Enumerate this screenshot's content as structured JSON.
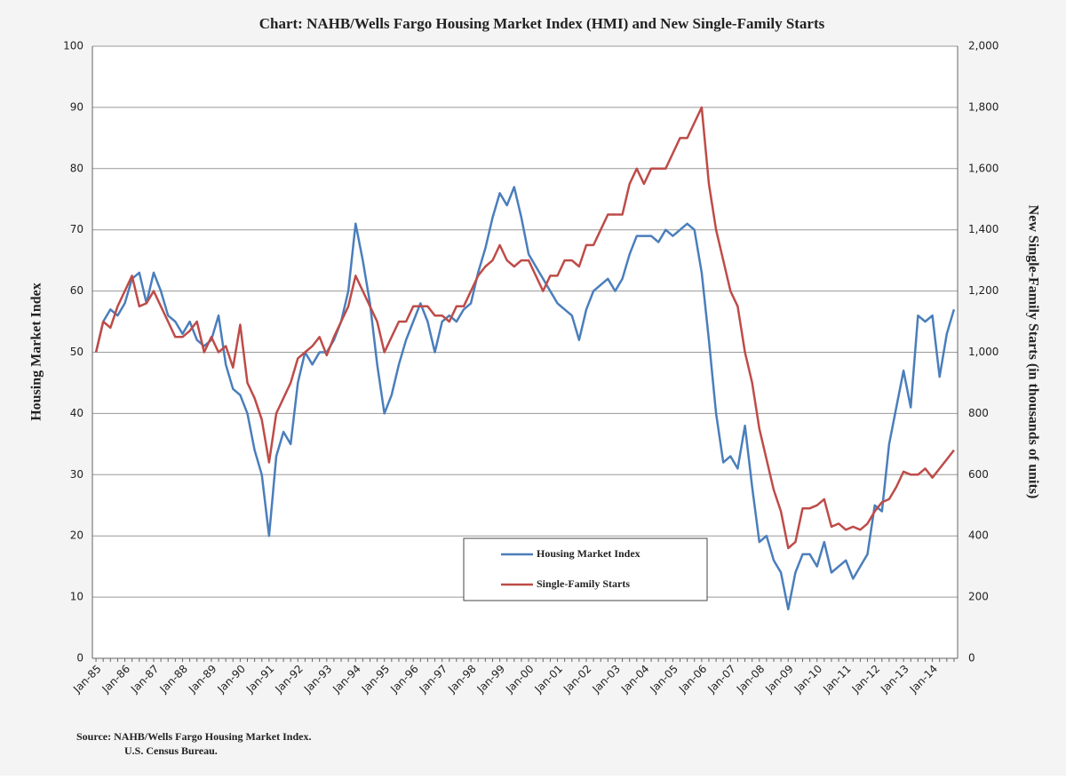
{
  "chart_data": {
    "type": "line",
    "title": "Chart:  NAHB/Wells Fargo Housing Market Index (HMI) and New Single-Family Starts",
    "ylabel": "Housing Market Index",
    "y2label": "New Single-Family Starts (in thousands of units)",
    "source": [
      "Source: NAHB/Wells Fargo Housing Market Index.",
      "U.S. Census Bureau."
    ],
    "grid": true,
    "legend": "bottom",
    "ylim": [
      0,
      100
    ],
    "yticks": [
      0,
      10,
      20,
      30,
      40,
      50,
      60,
      70,
      80,
      90,
      100
    ],
    "y2lim": [
      0,
      2000
    ],
    "y2ticks": [
      0,
      200,
      400,
      600,
      800,
      {
        "value": 1000,
        "label": "1,000"
      },
      {
        "value": 1200,
        "label": "1,200"
      },
      {
        "value": 1400,
        "label": "1,400"
      },
      {
        "value": 1600,
        "label": "1,600"
      },
      {
        "value": 1800,
        "label": "1,800"
      },
      {
        "value": 2000,
        "label": "2,000"
      }
    ],
    "categories": [
      "Jan-85",
      null,
      null,
      null,
      "Jan-86",
      null,
      null,
      null,
      "Jan-87",
      null,
      null,
      null,
      "Jan-88",
      null,
      null,
      null,
      "Jan-89",
      null,
      null,
      null,
      "Jan-90",
      null,
      null,
      null,
      "Jan-91",
      null,
      null,
      null,
      "Jan-92",
      null,
      null,
      null,
      "Jan-93",
      null,
      null,
      null,
      "Jan-94",
      null,
      null,
      null,
      "Jan-95",
      null,
      null,
      null,
      "Jan-96",
      null,
      null,
      null,
      "Jan-97",
      null,
      null,
      null,
      "Jan-98",
      null,
      null,
      null,
      "Jan-99",
      null,
      null,
      null,
      "Jan-00",
      null,
      null,
      null,
      "Jan-01",
      null,
      null,
      null,
      "Jan-02",
      null,
      null,
      null,
      "Jan-03",
      null,
      null,
      null,
      "Jan-04",
      null,
      null,
      null,
      "Jan-05",
      null,
      null,
      null,
      "Jan-06",
      null,
      null,
      null,
      "Jan-07",
      null,
      null,
      null,
      "Jan-08",
      null,
      null,
      null,
      "Jan-09",
      null,
      null,
      null,
      "Jan-10",
      null,
      null,
      null,
      "Jan-11",
      null,
      null,
      null,
      "Jan-12",
      null,
      null,
      null,
      "Jan-13",
      null,
      null,
      null,
      "Jan-14",
      null,
      null,
      null
    ],
    "series": [
      {
        "name": "Housing Market Index",
        "color": "#4a7ebb",
        "values": [
          50,
          55,
          57,
          56,
          58,
          62,
          63,
          58,
          63,
          60,
          56,
          55,
          53,
          55,
          52,
          51,
          52,
          56,
          48,
          44,
          43,
          40,
          34,
          30,
          20,
          33,
          37,
          35,
          45,
          50,
          48,
          50,
          50,
          52,
          55,
          60,
          71,
          65,
          58,
          48,
          40,
          43,
          48,
          52,
          55,
          58,
          55,
          50,
          55,
          56,
          55,
          57,
          58,
          63,
          67,
          72,
          76,
          74,
          77,
          72,
          66,
          64,
          62,
          60,
          58,
          57,
          56,
          52,
          57,
          60,
          61,
          62,
          60,
          62,
          66,
          69,
          69,
          69,
          68,
          70,
          69,
          70,
          71,
          70,
          63,
          52,
          40,
          32,
          33,
          31,
          38,
          28,
          19,
          20,
          16,
          14,
          8,
          14,
          17,
          17,
          15,
          19,
          14,
          15,
          16,
          13,
          15,
          17,
          25,
          24,
          35,
          41,
          47,
          41,
          56,
          55,
          56,
          46,
          53,
          57
        ]
      },
      {
        "name": "Single-Family Starts",
        "color": "#be4b48",
        "axis": "y2",
        "values": [
          1000,
          1100,
          1080,
          1150,
          1200,
          1250,
          1150,
          1160,
          1200,
          1150,
          1100,
          1050,
          1050,
          1070,
          1100,
          1000,
          1050,
          1000,
          1020,
          950,
          1090,
          900,
          850,
          780,
          640,
          800,
          850,
          900,
          980,
          1000,
          1020,
          1050,
          990,
          1050,
          1100,
          1150,
          1250,
          1200,
          1150,
          1100,
          1000,
          1050,
          1100,
          1100,
          1150,
          1150,
          1150,
          1120,
          1120,
          1100,
          1150,
          1150,
          1200,
          1250,
          1280,
          1300,
          1350,
          1300,
          1280,
          1300,
          1300,
          1250,
          1200,
          1250,
          1250,
          1300,
          1300,
          1280,
          1350,
          1350,
          1400,
          1450,
          1450,
          1450,
          1550,
          1600,
          1550,
          1600,
          1600,
          1600,
          1650,
          1700,
          1700,
          1750,
          1800,
          1550,
          1400,
          1300,
          1200,
          1150,
          1000,
          900,
          750,
          650,
          550,
          480,
          360,
          380,
          490,
          490,
          500,
          520,
          430,
          440,
          420,
          430,
          420,
          440,
          480,
          510,
          520,
          560,
          610,
          600,
          600,
          620,
          590,
          620,
          650,
          680
        ]
      }
    ]
  }
}
